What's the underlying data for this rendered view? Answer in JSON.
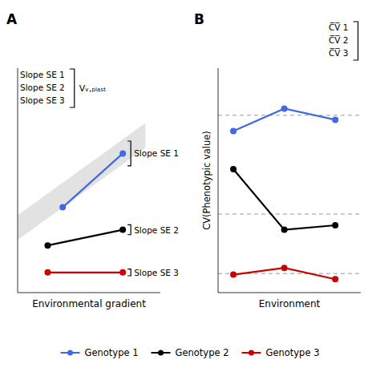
{
  "chart_data": [
    {
      "type": "line",
      "title": "A",
      "xlabel": "Environmental gradient",
      "xlim": [
        0,
        0.95
      ],
      "ylim": [
        0,
        1.0
      ],
      "tick_labels": false,
      "marker": "circle",
      "legend": "bottom",
      "band": {
        "x": [
          0.0,
          0.85
        ],
        "lower": [
          0.235,
          0.645
        ],
        "upper": [
          0.345,
          0.755
        ],
        "color": "#D3D3D3"
      },
      "series": [
        {
          "name": "Genotype 1",
          "color": "#4169E1",
          "x": [
            0.3,
            0.7
          ],
          "values": [
            0.38,
            0.62
          ],
          "annotation": "Slope SE 1",
          "se": 0.055
        },
        {
          "name": "Genotype 2",
          "color": "#000000",
          "x": [
            0.2,
            0.7
          ],
          "values": [
            0.21,
            0.28
          ],
          "annotation": "Slope SE 2",
          "se": 0.022
        },
        {
          "name": "Genotype 3",
          "color": "#CC0000",
          "x": [
            0.2,
            0.7
          ],
          "values": [
            0.09,
            0.09
          ],
          "annotation": "Slope SE 3",
          "se": 0.015
        }
      ],
      "annotations": [
        "Slope SE 1",
        "Slope SE 2",
        "Slope SE 3"
      ],
      "annotation_group_label": "Vᵥ,ₚₗₐₛₜ"
    },
    {
      "type": "line",
      "title": "B",
      "xlabel": "Environment",
      "ylabel": "CV(Phenotypic value)",
      "xlim": [
        -0.3,
        2.5
      ],
      "ylim": [
        0,
        1.0
      ],
      "tick_labels": false,
      "marker": "circle",
      "reference_lines": [
        0.79,
        0.35,
        0.085
      ],
      "series": [
        {
          "color": "#4169E1",
          "x": [
            0,
            1,
            2
          ],
          "values": [
            0.72,
            0.82,
            0.77
          ]
        },
        {
          "color": "#000000",
          "x": [
            0,
            1,
            2
          ],
          "values": [
            0.55,
            0.28,
            0.3
          ]
        },
        {
          "color": "#CC0000",
          "x": [
            0,
            1,
            2
          ],
          "values": [
            0.08,
            0.11,
            0.06
          ]
        }
      ],
      "annotations": [
        "C̅V̅ 1",
        "C̅V̅ 2",
        "C̅V̅ 3"
      ]
    }
  ]
}
